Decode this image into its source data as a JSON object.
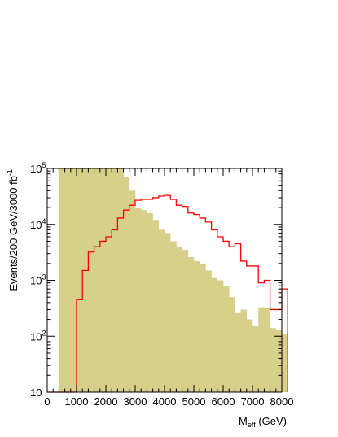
{
  "chart_data": {
    "type": "bar",
    "xlabel": "M_eff (GeV)",
    "xlabel_main": "M",
    "xlabel_sub": "eff",
    "xlabel_unit": " (GeV)",
    "ylabel": "Events/200 GeV/3000 fb-1",
    "ylabel_main": "Events/200 GeV/3000 fb",
    "ylabel_sup": "-1",
    "y_scale": "log",
    "xlim": [
      0,
      8000
    ],
    "ylim": [
      10,
      100000
    ],
    "x_ticks": [
      "0",
      "1000",
      "2000",
      "3000",
      "4000",
      "5000",
      "6000",
      "7000",
      "8000"
    ],
    "y_ticks": [
      {
        "value": 10,
        "base": "10",
        "exp": ""
      },
      {
        "value": 100,
        "base": "10",
        "exp": "2"
      },
      {
        "value": 1000,
        "base": "10",
        "exp": "3"
      },
      {
        "value": 10000,
        "base": "10",
        "exp": "4"
      },
      {
        "value": 100000,
        "base": "10",
        "exp": "5"
      }
    ],
    "bin_width": 200,
    "bin_edges_start": 0,
    "series": [
      {
        "style": "filled",
        "color": "#d6d08a",
        "values": [
          0,
          0,
          100000,
          100000,
          100000,
          100000,
          100000,
          100000,
          100000,
          100000,
          100000,
          100000,
          100000,
          70000,
          40000,
          20000,
          18000,
          16000,
          12000,
          8000,
          7000,
          5000,
          4000,
          3500,
          2600,
          2200,
          2000,
          1500,
          1100,
          1000,
          800,
          500,
          260,
          300,
          200,
          150,
          330,
          320,
          140,
          130,
          110
        ]
      },
      {
        "style": "step",
        "color": "#ff0000",
        "values": [
          0,
          0,
          0,
          0,
          0,
          450,
          1500,
          3200,
          4000,
          5000,
          6000,
          8000,
          13000,
          18000,
          22000,
          27000,
          28000,
          28000,
          30000,
          32000,
          33000,
          28000,
          22000,
          21000,
          16000,
          15000,
          13000,
          11000,
          8000,
          6000,
          5000,
          4000,
          4500,
          2200,
          1800,
          1800,
          900,
          1000,
          300,
          300,
          700
        ]
      }
    ],
    "extra_fill_last_bin": {
      "x_start": 7800,
      "x_end": 8000,
      "value": 30
    }
  }
}
